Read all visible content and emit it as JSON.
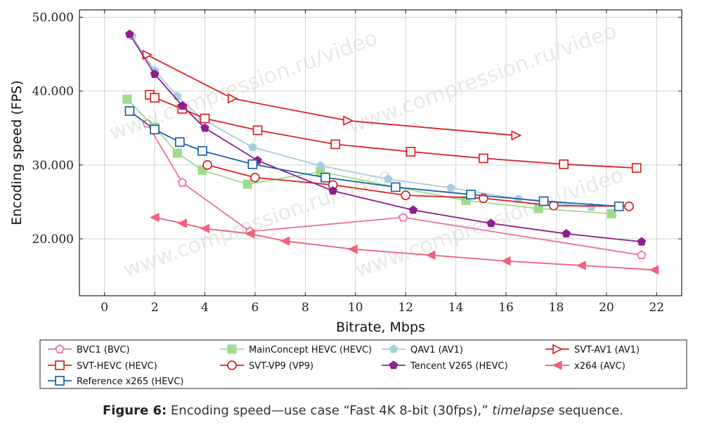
{
  "chart_data": {
    "type": "line",
    "xlabel": "Bitrate, Mbps",
    "ylabel": "Encoding speed (FPS)",
    "xlim": [
      -1,
      23
    ],
    "ylim": [
      12.3,
      51
    ],
    "x_ticks": [
      "0",
      "2",
      "4",
      "6",
      "8",
      "10",
      "12",
      "14",
      "16",
      "18",
      "20",
      "22"
    ],
    "y_ticks": [
      "20.000",
      "30.000",
      "40.000",
      "50.000"
    ],
    "grid": true,
    "legend_position": "bottom",
    "watermark": "www.compression.ru/video",
    "series": [
      {
        "name": "BVC1 (BVC)",
        "color": "#ef6f9a",
        "marker": "pentagon-open",
        "points": [
          [
            1.7,
            35.6
          ],
          [
            3.1,
            27.6
          ],
          [
            5.8,
            21.0
          ],
          [
            11.9,
            22.9
          ],
          [
            21.4,
            17.8
          ]
        ]
      },
      {
        "name": "MainConcept HEVC (HEVC)",
        "color": "#9edb8a",
        "marker": "square-filled",
        "points": [
          [
            0.9,
            38.9
          ],
          [
            2.0,
            35.1
          ],
          [
            2.9,
            31.6
          ],
          [
            3.9,
            29.3
          ],
          [
            5.7,
            27.4
          ],
          [
            8.6,
            29.1
          ],
          [
            11.6,
            27.0
          ],
          [
            14.4,
            25.2
          ],
          [
            17.3,
            24.1
          ],
          [
            20.2,
            23.4
          ]
        ]
      },
      {
        "name": "QAV1 (AV1)",
        "color": "#a8cde0",
        "marker": "pentagon-filled",
        "points": [
          [
            1.1,
            47.4
          ],
          [
            2.0,
            42.8
          ],
          [
            2.9,
            39.3
          ],
          [
            3.9,
            36.2
          ],
          [
            5.9,
            32.4
          ],
          [
            8.6,
            29.9
          ],
          [
            11.3,
            28.1
          ],
          [
            13.8,
            26.9
          ],
          [
            16.5,
            25.4
          ],
          [
            19.4,
            24.3
          ]
        ]
      },
      {
        "name": "SVT-AV1 (AV1)",
        "color": "#dd2222",
        "marker": "triangle-right-open",
        "points": [
          [
            1.7,
            44.9
          ],
          [
            5.1,
            39.0
          ],
          [
            9.7,
            36.0
          ],
          [
            16.4,
            34.0
          ]
        ]
      },
      {
        "name": "SVT-HEVC (HEVC)",
        "color": "#dd2222",
        "marker": "square-open",
        "points": [
          [
            1.8,
            39.5
          ],
          [
            2.0,
            39.1
          ],
          [
            3.1,
            37.6
          ],
          [
            4.0,
            36.3
          ],
          [
            6.1,
            34.7
          ],
          [
            9.2,
            32.8
          ],
          [
            12.2,
            31.8
          ],
          [
            15.1,
            30.9
          ],
          [
            18.3,
            30.1
          ],
          [
            21.2,
            29.6
          ]
        ]
      },
      {
        "name": "SVT-VP9 (VP9)",
        "color": "#dd2222",
        "marker": "circle-open",
        "points": [
          [
            4.1,
            30.0
          ],
          [
            6.0,
            28.3
          ],
          [
            9.1,
            27.3
          ],
          [
            12.0,
            25.9
          ],
          [
            15.1,
            25.5
          ],
          [
            17.9,
            24.5
          ],
          [
            20.9,
            24.4
          ]
        ]
      },
      {
        "name": "Tencent V265 (HEVC)",
        "color": "#8e1f8e",
        "marker": "pentagon-filled",
        "points": [
          [
            1.0,
            47.7
          ],
          [
            2.0,
            42.3
          ],
          [
            3.1,
            38.0
          ],
          [
            4.0,
            35.0
          ],
          [
            6.1,
            30.6
          ],
          [
            9.1,
            26.5
          ],
          [
            12.3,
            23.9
          ],
          [
            15.4,
            22.1
          ],
          [
            18.4,
            20.7
          ],
          [
            21.4,
            19.6
          ]
        ]
      },
      {
        "name": "x264 (AVC)",
        "color": "#f0607a",
        "marker": "triangle-left-filled",
        "points": [
          [
            2.0,
            22.9
          ],
          [
            3.1,
            22.1
          ],
          [
            4.0,
            21.4
          ],
          [
            5.8,
            20.7
          ],
          [
            7.2,
            19.7
          ],
          [
            9.9,
            18.6
          ],
          [
            13.0,
            17.8
          ],
          [
            16.0,
            17.0
          ],
          [
            19.0,
            16.4
          ],
          [
            21.9,
            15.8
          ]
        ]
      },
      {
        "name": "Reference x265 (HEVC)",
        "color": "#1f5fa8",
        "marker": "square-open",
        "points": [
          [
            1.0,
            37.3
          ],
          [
            2.0,
            34.8
          ],
          [
            3.0,
            33.1
          ],
          [
            3.9,
            31.9
          ],
          [
            5.9,
            30.1
          ],
          [
            8.8,
            28.3
          ],
          [
            11.6,
            27.0
          ],
          [
            14.6,
            26.0
          ],
          [
            17.5,
            25.1
          ],
          [
            20.5,
            24.4
          ]
        ]
      }
    ]
  },
  "caption": {
    "label": "Figure 6:",
    "text_before": " Encoding speed—use case “Fast 4K 8-bit (30fps),” ",
    "italic": "timelapse",
    "text_after": " sequence."
  }
}
